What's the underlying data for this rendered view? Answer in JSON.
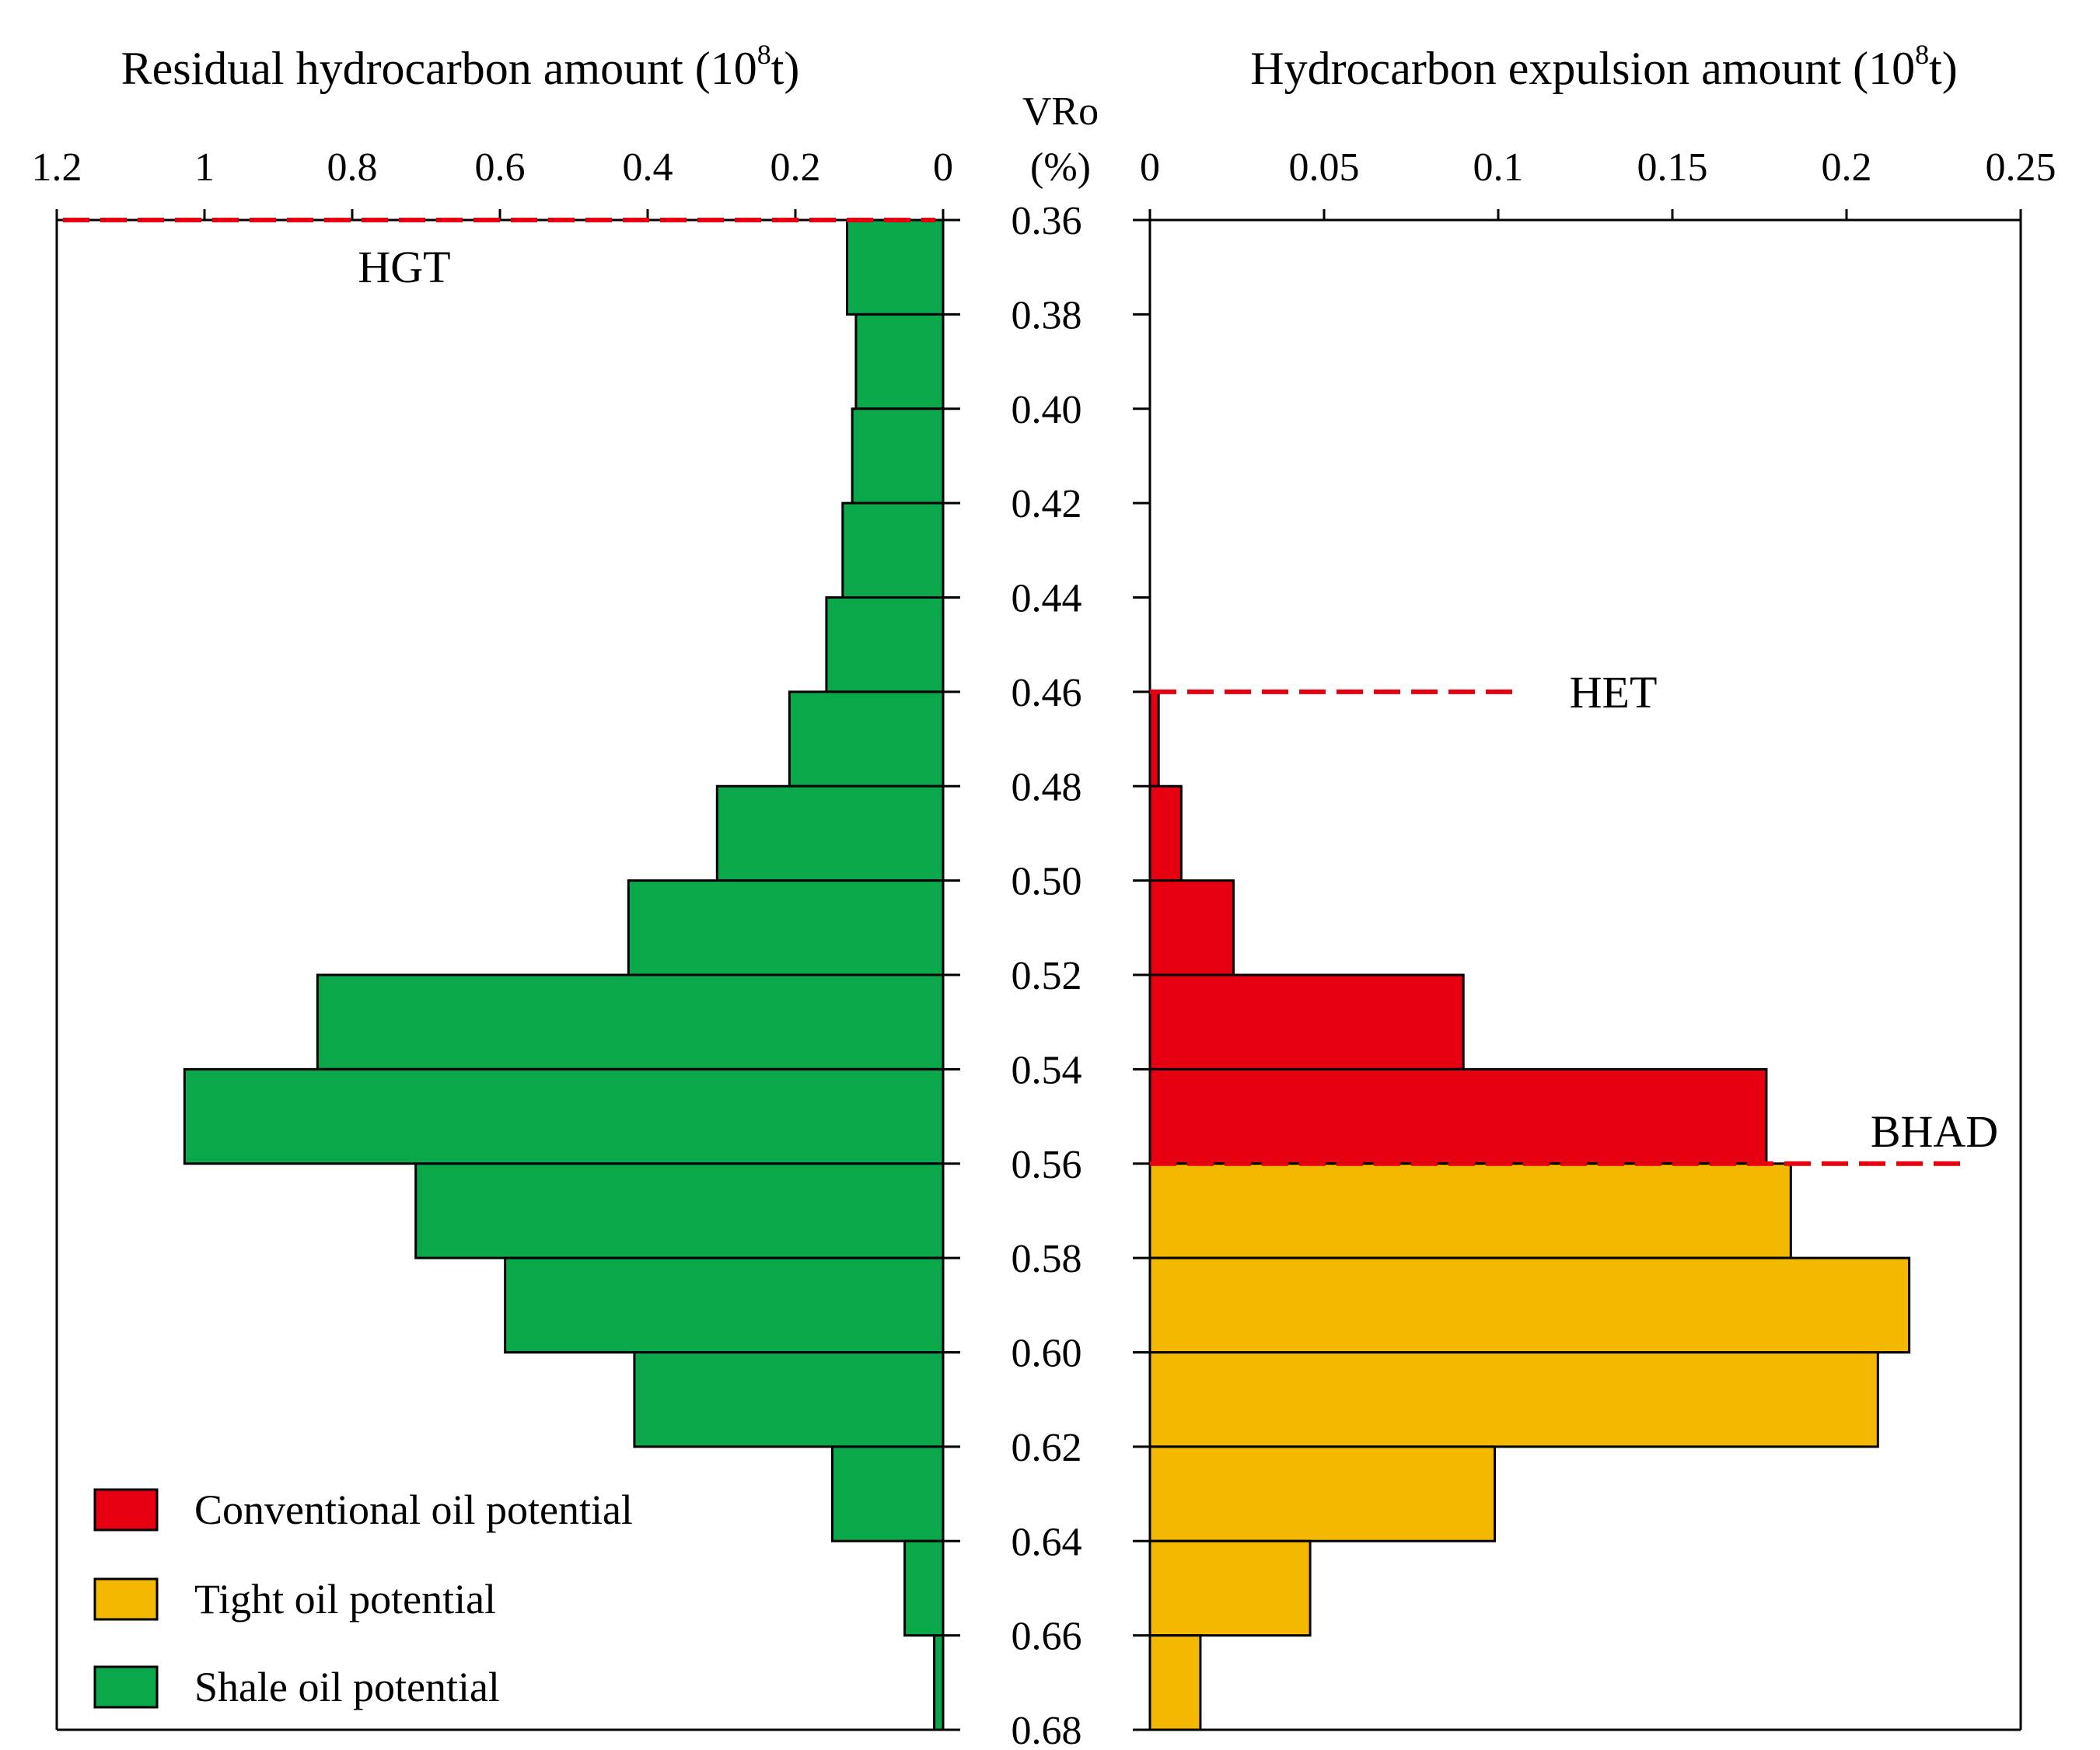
{
  "chart_data": [
    {
      "type": "bar",
      "orientation": "horizontal",
      "direction": "reversed",
      "title": "Residual hydrocarbon amount (10",
      "title_sup": "8",
      "title_suffix": "t)",
      "xlim": [
        0,
        1.2
      ],
      "xticks": [
        "1.2",
        "1",
        "0.8",
        "0.6",
        "0.4",
        "0.2",
        "0"
      ],
      "xtick_values": [
        1.2,
        1.0,
        0.8,
        0.6,
        0.4,
        0.2,
        0
      ],
      "series": [
        {
          "name": "Shale oil potential",
          "color": "#0aa84a",
          "bins": [
            [
              0.36,
              0.38,
              0.13
            ],
            [
              0.38,
              0.4,
              0.118
            ],
            [
              0.4,
              0.42,
              0.123
            ],
            [
              0.42,
              0.44,
              0.136
            ],
            [
              0.44,
              0.46,
              0.158
            ],
            [
              0.46,
              0.48,
              0.208
            ],
            [
              0.48,
              0.5,
              0.306
            ],
            [
              0.5,
              0.52,
              0.426
            ],
            [
              0.52,
              0.54,
              0.847
            ],
            [
              0.54,
              0.56,
              1.027
            ],
            [
              0.56,
              0.58,
              0.714
            ],
            [
              0.58,
              0.6,
              0.593
            ],
            [
              0.6,
              0.62,
              0.418
            ],
            [
              0.62,
              0.64,
              0.15
            ],
            [
              0.64,
              0.66,
              0.052
            ],
            [
              0.66,
              0.68,
              0.012
            ]
          ]
        }
      ],
      "annotations": [
        {
          "label": "HGT",
          "vro": 0.36
        }
      ]
    },
    {
      "type": "bar",
      "orientation": "horizontal",
      "title": "Hydrocarbon expulsion amount (10",
      "title_sup": "8",
      "title_suffix": "t)",
      "xlim": [
        0,
        0.25
      ],
      "xticks": [
        "0",
        "0.05",
        "0.1",
        "0.15",
        "0.2",
        "0.25"
      ],
      "xtick_values": [
        0,
        0.05,
        0.1,
        0.15,
        0.2,
        0.25
      ],
      "series": [
        {
          "name": "Conventional oil potential",
          "color": "#e60012",
          "bins": [
            [
              0.46,
              0.48,
              0.0025
            ],
            [
              0.48,
              0.5,
              0.009
            ],
            [
              0.5,
              0.52,
              0.024
            ],
            [
              0.52,
              0.54,
              0.09
            ],
            [
              0.54,
              0.56,
              0.177
            ]
          ]
        },
        {
          "name": "Tight oil potential",
          "color": "#f5b800",
          "bins": [
            [
              0.56,
              0.58,
              0.184
            ],
            [
              0.58,
              0.6,
              0.218
            ],
            [
              0.6,
              0.62,
              0.209
            ],
            [
              0.62,
              0.64,
              0.099
            ],
            [
              0.64,
              0.66,
              0.046
            ],
            [
              0.66,
              0.68,
              0.0145
            ]
          ]
        }
      ],
      "annotations": [
        {
          "label": "HET",
          "vro": 0.46,
          "x_end": 0.105
        },
        {
          "label": "BHAD",
          "vro": 0.56,
          "x_end": 0.235
        }
      ]
    }
  ],
  "y_axis": {
    "label_line1": "VRo",
    "label_line2": "(%)",
    "range": [
      0.36,
      0.68
    ],
    "ticks": [
      "0.36",
      "0.38",
      "0.40",
      "0.42",
      "0.44",
      "0.46",
      "0.48",
      "0.50",
      "0.52",
      "0.54",
      "0.56",
      "0.58",
      "0.60",
      "0.62",
      "0.64",
      "0.66",
      "0.68"
    ]
  },
  "legend": [
    {
      "label": "Conventional oil potential",
      "color": "#e60012"
    },
    {
      "label": "Tight oil potential",
      "color": "#f5b800"
    },
    {
      "label": "Shale oil potential",
      "color": "#0aa84a"
    }
  ],
  "dash_color": "#e60012"
}
